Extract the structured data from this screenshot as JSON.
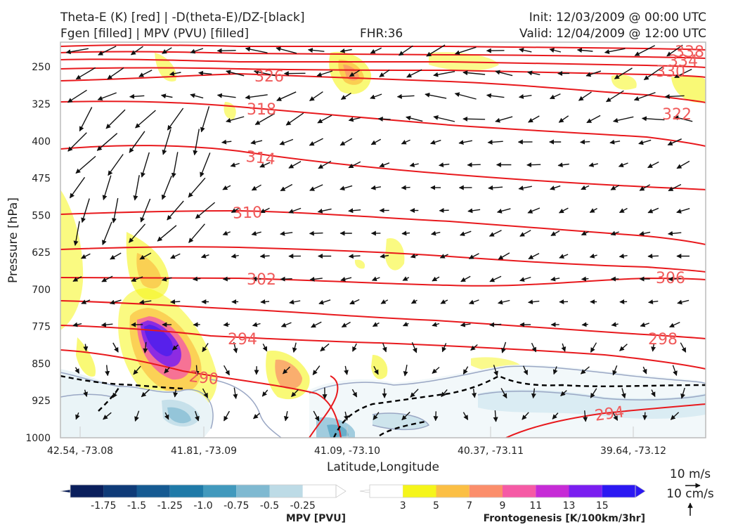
{
  "header": {
    "title_line1": "Theta-E (K) [red] | -D(theta-E)/DZ-[black]",
    "title_line2": "Fgen [filled] | MPV (PVU) [filled]",
    "fhr": "FHR:36",
    "init": "Init: 12/03/2009 @ 00:00 UTC",
    "valid": "Valid: 12/04/2009 @ 12:00 UTC"
  },
  "chart_data": {
    "type": "cross-section",
    "xlabel": "Latitude,Longitude",
    "ylabel": "Pressure [hPa]",
    "x_ticks": [
      "42.54, -73.08",
      "41.81, -73.09",
      "41.09, -73.10",
      "40.37, -73.11",
      "39.64, -73.12"
    ],
    "y_ticks": [
      250,
      325,
      400,
      475,
      550,
      625,
      700,
      775,
      850,
      925,
      1000
    ],
    "ylim": [
      1000,
      200
    ],
    "y_reversed": true,
    "theta_e_contours": [
      {
        "label": "290",
        "color": "#e8191d"
      },
      {
        "label": "294",
        "color": "#e8191d"
      },
      {
        "label": "298",
        "color": "#e8191d"
      },
      {
        "label": "302",
        "color": "#e8191d"
      },
      {
        "label": "306",
        "color": "#e8191d"
      },
      {
        "label": "310",
        "color": "#e8191d"
      },
      {
        "label": "314",
        "color": "#e8191d"
      },
      {
        "label": "318",
        "color": "#e8191d"
      },
      {
        "label": "322",
        "color": "#e8191d"
      },
      {
        "label": "326",
        "color": "#e8191d"
      },
      {
        "label": "330",
        "color": "#e8191d"
      },
      {
        "label": "334",
        "color": "#e8191d"
      },
      {
        "label": "338",
        "color": "#e8191d"
      }
    ],
    "mpv_colorbar": {
      "label": "MPV [PVU]",
      "ticks": [
        "-1.75",
        "-1.5",
        "-1.25",
        "-1.0",
        "-0.75",
        "-0.5",
        "-0.25"
      ],
      "colors": [
        "#0a1f5c",
        "#0f3b78",
        "#155a92",
        "#1f7aa8",
        "#4199bd",
        "#7fb9d1",
        "#bddbe6",
        "#ffffff"
      ]
    },
    "fgen_colorbar": {
      "label": "Frontogenesis [K/100km/3hr]",
      "ticks": [
        "3",
        "5",
        "7",
        "9",
        "11",
        "13",
        "15"
      ],
      "colors": [
        "#ffffff",
        "#f5f51a",
        "#fbbf45",
        "#fb8e6b",
        "#f55aa5",
        "#c62bd6",
        "#7a1ef0",
        "#2b18f2"
      ]
    },
    "vector_key": {
      "horizontal": "10 m/s",
      "vertical": "10 cm/s"
    }
  }
}
